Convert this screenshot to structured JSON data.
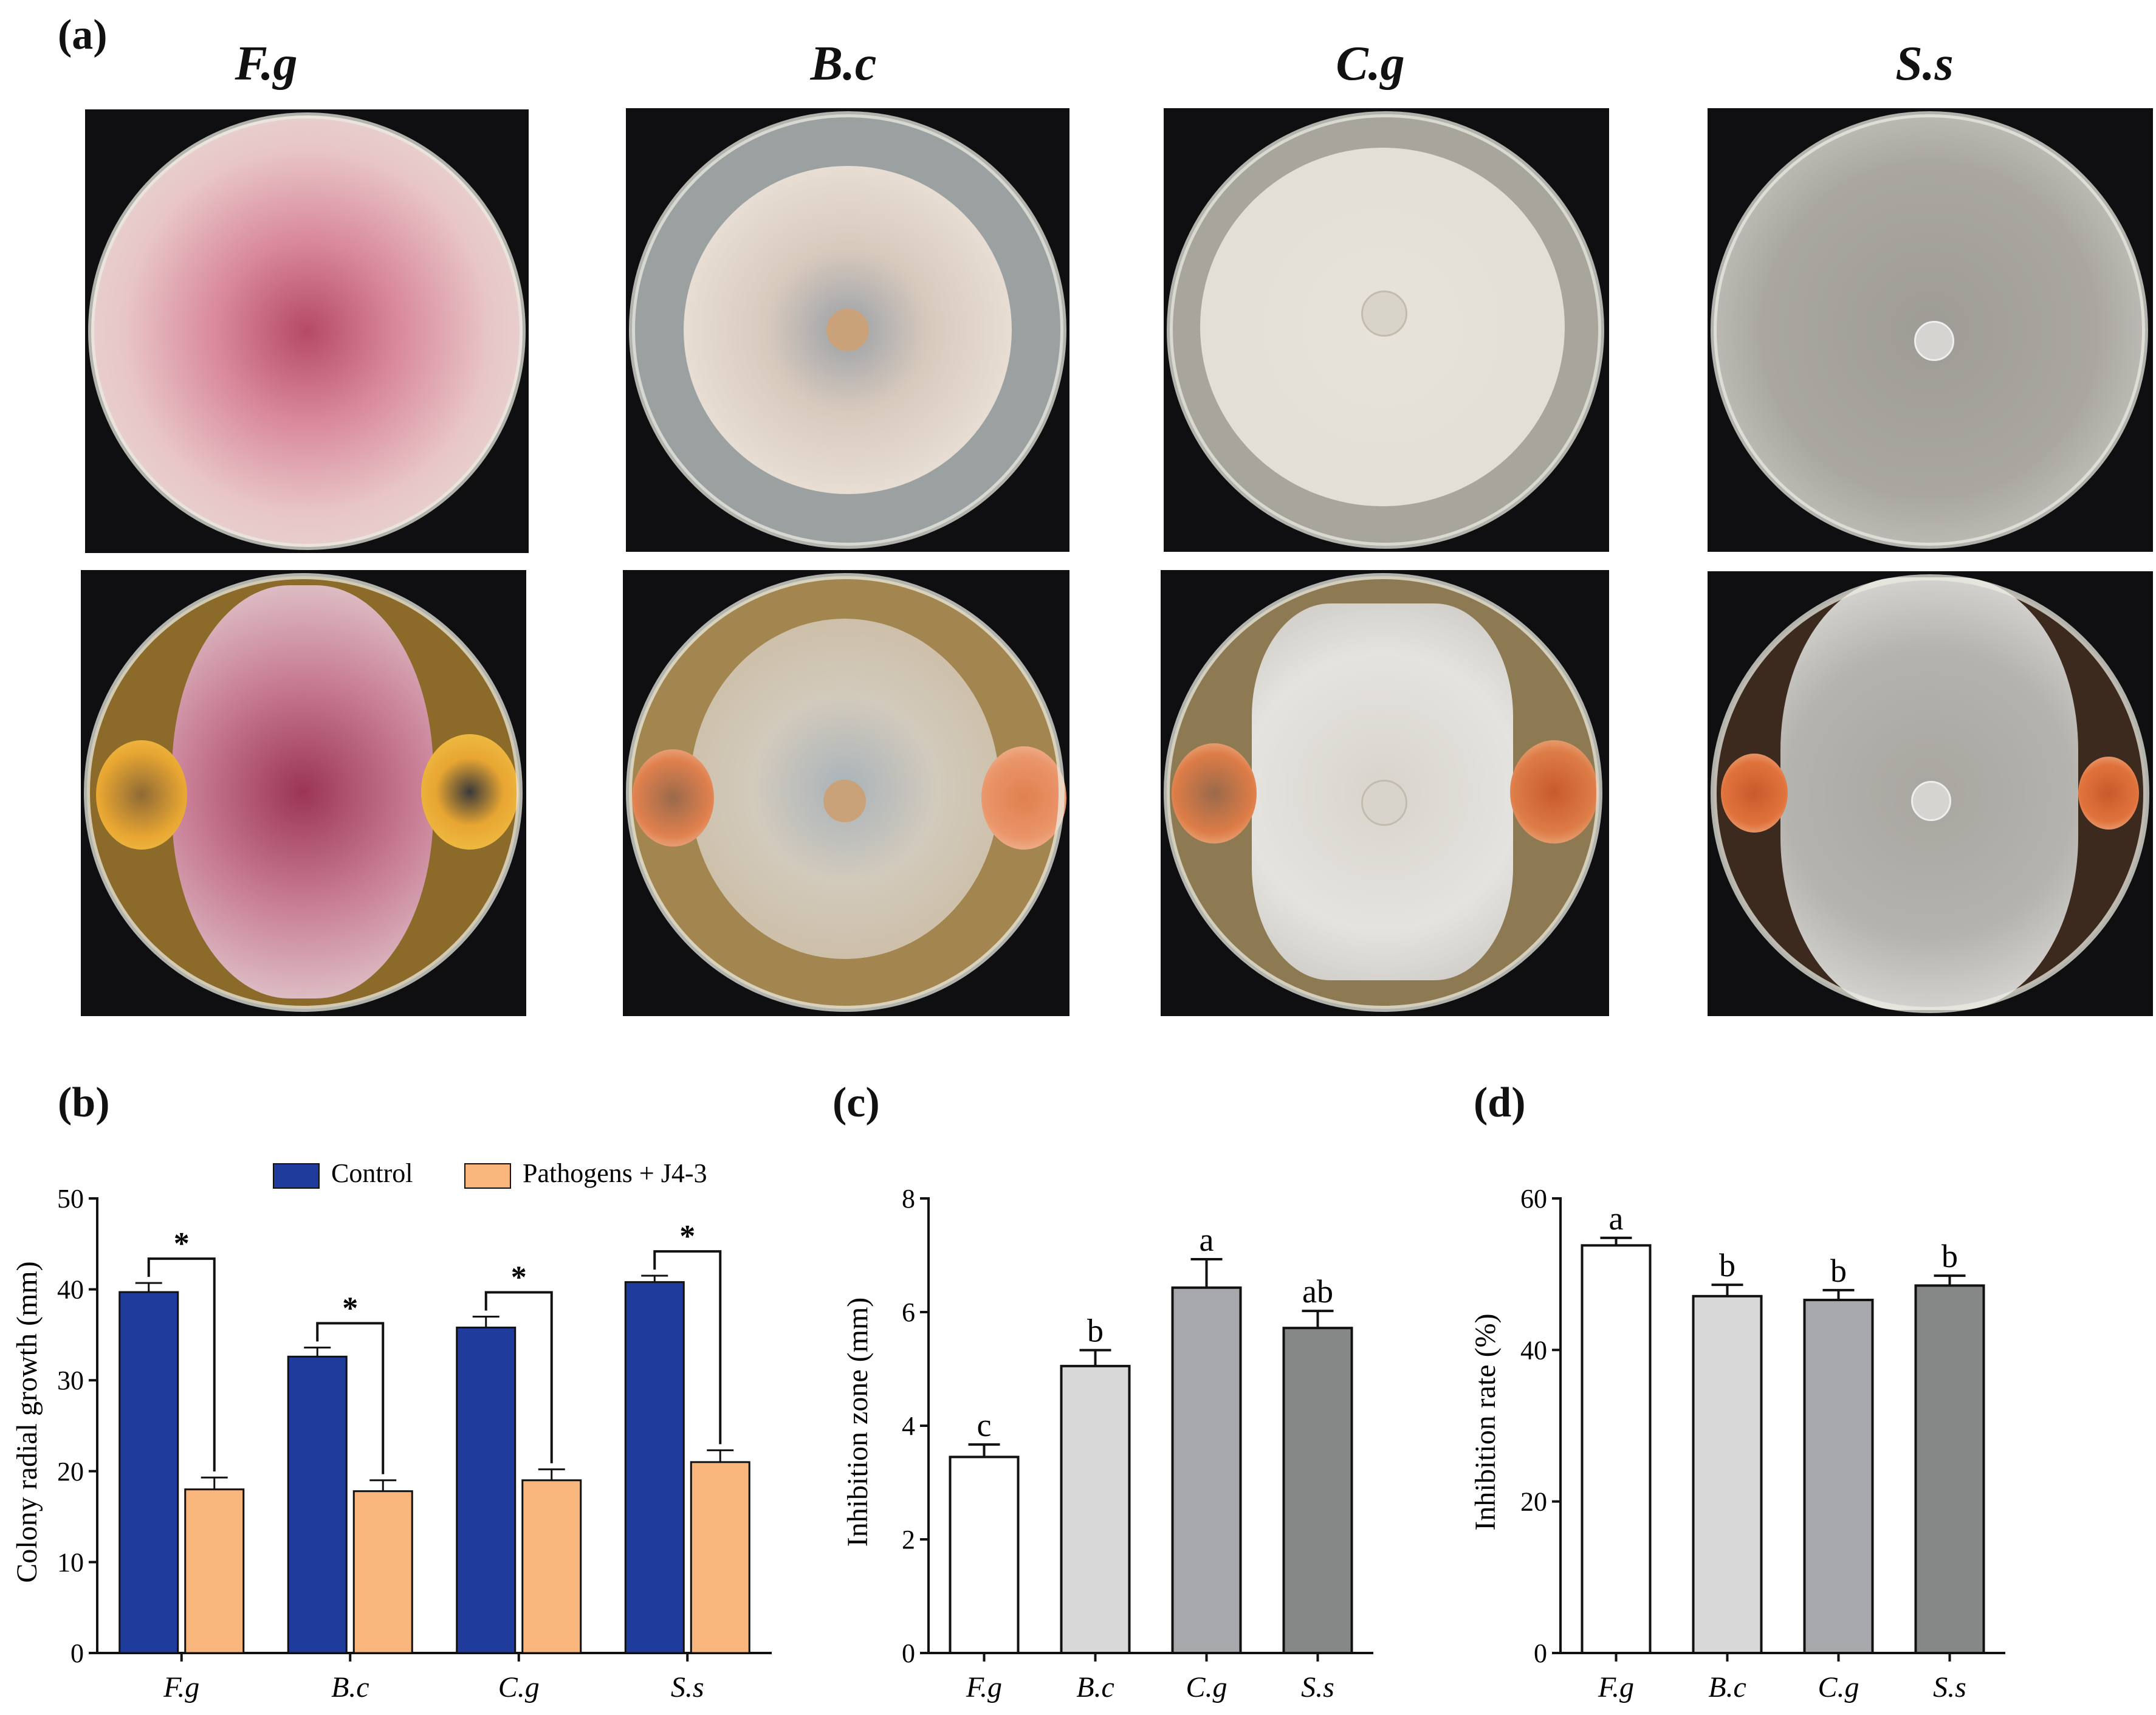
{
  "figure": {
    "panel_labels": {
      "a": "(a)",
      "b": "(b)",
      "c": "(c)",
      "d": "(d)"
    },
    "species_titles": [
      "F.g",
      "B.c",
      "C.g",
      "S.s"
    ],
    "plates": [
      {
        "species": "F.g",
        "row": "control",
        "colony_color": "#e7a2ad",
        "center_color": "#b64a66",
        "spot_color": ""
      },
      {
        "species": "B.c",
        "row": "control",
        "colony_color": "#ddd2c4",
        "center_color": "#c9a27a",
        "spot_color": ""
      },
      {
        "species": "C.g",
        "row": "control",
        "colony_color": "#e8e4dc",
        "center_color": "#d9d4c9",
        "spot_color": ""
      },
      {
        "species": "S.s",
        "row": "control",
        "colony_color": "#a7a49e",
        "center_color": "#d6d4d0",
        "spot_color": ""
      },
      {
        "species": "F.g",
        "row": "treated",
        "colony_color": "#c77b93",
        "center_color": "#9c3556",
        "spot_color": "#e8a632"
      },
      {
        "species": "B.c",
        "row": "treated",
        "colony_color": "#cdbfa8",
        "center_color": "#a9b3ba",
        "spot_color": "#e0804e"
      },
      {
        "species": "C.g",
        "row": "treated",
        "colony_color": "#e5e3df",
        "center_color": "#d8d4cc",
        "spot_color": "#dd7c47"
      },
      {
        "species": "S.s",
        "row": "treated",
        "colony_color": "#b5b3ae",
        "center_color": "#d6d4d0",
        "spot_color": "#e0733c"
      }
    ]
  },
  "colors": {
    "control": "#1f3b9c",
    "treated": "#f8b57c",
    "fg": "#ffffff",
    "bc": "#d8d8d8",
    "cg": "#a6a8ab",
    "ss": "#868787"
  },
  "chart_data": [
    {
      "panel": "b",
      "type": "bar",
      "categories": [
        "F.g",
        "B.c",
        "C.g",
        "S.s"
      ],
      "series": [
        {
          "name": "Control",
          "values": [
            39.7,
            32.6,
            35.8,
            40.8
          ],
          "errors": [
            1.0,
            1.0,
            1.2,
            0.7
          ]
        },
        {
          "name": "Pathogens + J4-3",
          "values": [
            18.0,
            17.8,
            19.0,
            21.0
          ],
          "errors": [
            1.3,
            1.2,
            1.2,
            1.3
          ]
        }
      ],
      "significance": [
        "*",
        "*",
        "*",
        "*"
      ],
      "ylabel": "Colony radial growth (mm)",
      "xlabel": "",
      "ylim": [
        0,
        50
      ],
      "yticks": [
        0,
        10,
        20,
        30,
        40,
        50
      ],
      "legend": "top"
    },
    {
      "panel": "c",
      "type": "bar",
      "categories": [
        "F.g",
        "B.c",
        "C.g",
        "S.s"
      ],
      "values": [
        3.45,
        5.05,
        6.43,
        5.72
      ],
      "errors": [
        0.22,
        0.28,
        0.5,
        0.3
      ],
      "letters": [
        "c",
        "b",
        "a",
        "ab"
      ],
      "ylabel": "Inhibition zone (mm)",
      "xlabel": "",
      "ylim": [
        0,
        8
      ],
      "yticks": [
        0,
        2,
        4,
        6,
        8
      ]
    },
    {
      "panel": "d",
      "type": "bar",
      "categories": [
        "F.g",
        "B.c",
        "C.g",
        "S.s"
      ],
      "values": [
        53.8,
        47.1,
        46.6,
        48.5
      ],
      "errors": [
        1.0,
        1.5,
        1.3,
        1.3
      ],
      "letters": [
        "a",
        "b",
        "b",
        "b"
      ],
      "ylabel": "Inhibition rate (%)",
      "xlabel": "",
      "ylim": [
        0,
        60
      ],
      "yticks": [
        0,
        20,
        40,
        60
      ]
    }
  ]
}
